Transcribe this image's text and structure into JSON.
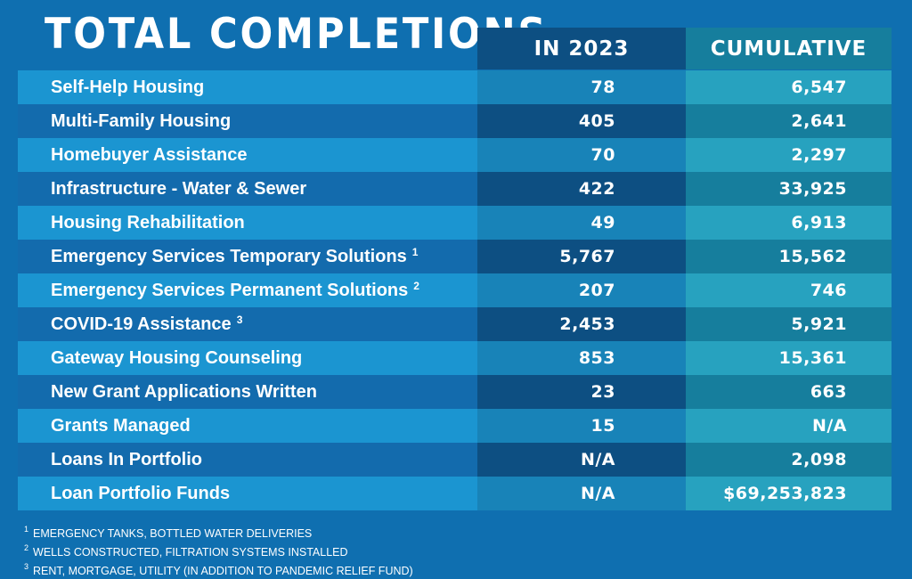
{
  "title": "TOTAL COMPLETIONS",
  "headers": {
    "col_2023": "IN 2023",
    "col_cumulative": "CUMULATIVE"
  },
  "rows": [
    {
      "label": "Self-Help Housing",
      "sup": "",
      "in_2023": "78",
      "cumulative": "6,547",
      "currency": ""
    },
    {
      "label": "Multi-Family Housing",
      "sup": "",
      "in_2023": "405",
      "cumulative": "2,641",
      "currency": ""
    },
    {
      "label": "Homebuyer Assistance",
      "sup": "",
      "in_2023": "70",
      "cumulative": "2,297",
      "currency": ""
    },
    {
      "label": "Infrastructure - Water & Sewer",
      "sup": "",
      "in_2023": "422",
      "cumulative": "33,925",
      "currency": ""
    },
    {
      "label": "Housing Rehabilitation",
      "sup": "",
      "in_2023": "49",
      "cumulative": "6,913",
      "currency": ""
    },
    {
      "label": "Emergency Services Temporary Solutions",
      "sup": "1",
      "in_2023": "5,767",
      "cumulative": "15,562",
      "currency": ""
    },
    {
      "label": "Emergency Services Permanent Solutions",
      "sup": "2",
      "in_2023": "207",
      "cumulative": "746",
      "currency": ""
    },
    {
      "label": "COVID-19 Assistance",
      "sup": "3",
      "in_2023": "2,453",
      "cumulative": "5,921",
      "currency": ""
    },
    {
      "label": "Gateway Housing Counseling",
      "sup": "",
      "in_2023": "853",
      "cumulative": "15,361",
      "currency": ""
    },
    {
      "label": "New Grant Applications Written",
      "sup": "",
      "in_2023": "23",
      "cumulative": "663",
      "currency": ""
    },
    {
      "label": "Grants Managed",
      "sup": "",
      "in_2023": "15",
      "cumulative": "N/A",
      "currency": ""
    },
    {
      "label": "Loans In Portfolio",
      "sup": "",
      "in_2023": "N/A",
      "cumulative": "2,098",
      "currency": ""
    },
    {
      "label": "Loan Portfolio Funds",
      "sup": "",
      "in_2023": "N/A",
      "cumulative": "69,253,823",
      "currency": "$"
    }
  ],
  "footnotes": [
    {
      "mark": "1",
      "text": "EMERGENCY TANKS, BOTTLED WATER DELIVERIES"
    },
    {
      "mark": "2",
      "text": "WELLS CONSTRUCTED, FILTRATION SYSTEMS INSTALLED"
    },
    {
      "mark": "3",
      "text": "RENT, MORTGAGE, UTILITY (IN ADDITION TO PANDEMIC RELIEF FUND)"
    }
  ]
}
